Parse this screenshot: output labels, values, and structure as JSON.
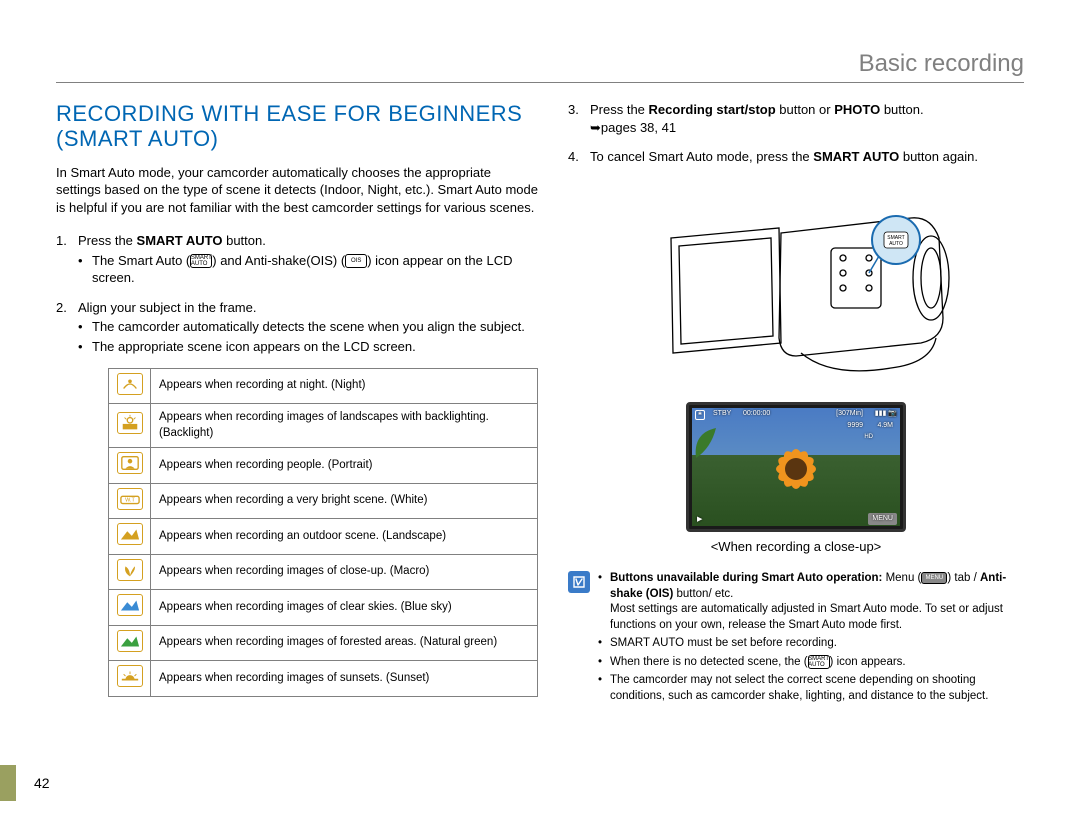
{
  "chapter": "Basic recording",
  "page_number": "42",
  "section_title_line1": "RECORDING WITH EASE FOR BEGINNERS",
  "section_title_line2": "(SMART AUTO)",
  "intro": "In Smart Auto mode, your camcorder automatically chooses the appropriate settings based on the type of scene it detects (Indoor, Night, etc.). Smart Auto mode is helpful if you are not familiar with the best camcorder settings for various scenes.",
  "step1_pre": "Press the ",
  "step1_bold": "SMART AUTO",
  "step1_post": " button.",
  "step1_sub_pre": "The Smart Auto (",
  "step1_sub_mid": ") and Anti-shake(OIS) (",
  "step1_sub_post": ") icon appear on the LCD screen.",
  "icon_smart": "SMART AUTO",
  "icon_ois": "OIS",
  "step2": "Align your subject in the frame.",
  "step2_sub1": "The camcorder automatically detects the scene when you align the subject.",
  "step2_sub2": "The appropriate scene icon appears on the LCD screen.",
  "scene_rows": [
    "Appears when recording at night. (Night)",
    "Appears when recording images of landscapes with backlighting. (Backlight)",
    "Appears when recording people. (Portrait)",
    "Appears when recording a very bright scene. (White)",
    "Appears when recording an outdoor scene. (Landscape)",
    "Appears when recording images of close-up. (Macro)",
    "Appears when recording images of clear skies. (Blue sky)",
    "Appears when recording images of forested areas. (Natural green)",
    "Appears when recording images of sunsets. (Sunset)"
  ],
  "scene_icon_colors": [
    "#d4a020",
    "#d4a020",
    "#d4a020",
    "#d4a020",
    "#d4a020",
    "#d4a020",
    "#d4a020",
    "#d4a020",
    "#d4a020"
  ],
  "step3_pre": "Press the ",
  "step3_b1": "Recording start/stop",
  "step3_mid": " button or ",
  "step3_b2": "PHOTO",
  "step3_post": " button.",
  "step3_pages": "pages 38, 41",
  "step4_pre": "To cancel Smart Auto mode, press the ",
  "step4_bold": "SMART AUTO",
  "step4_post": " button again.",
  "caption": "<When recording a close-up>",
  "note1_b1": "Buttons unavailable during Smart Auto operation:",
  "note1_t1": " Menu (",
  "note1_t2": ") tab / ",
  "note1_b2": "Anti-shake (OIS)",
  "note1_t3": " button/ etc.",
  "note1_line2": "Most settings are automatically adjusted in Smart Auto mode. To set or adjust functions on your own, release the Smart Auto mode first.",
  "note2": "SMART AUTO must be set before recording.",
  "note3_pre": "When there is no detected scene, the (",
  "note3_post": ") icon appears.",
  "note4": "The camcorder may not select the correct scene depending on shooting conditions, such as camcorder shake, lighting, and distance to the subject.",
  "osd": {
    "stby": "STBY",
    "time": "00:00:00",
    "remain": "[307Min]",
    "count": "9999",
    "res": "4.9M",
    "menu": "MENU"
  },
  "menu_pill": "MENU",
  "colors": {
    "accent": "#0066b3",
    "chapter": "#808080",
    "icon_border": "#d4a020",
    "note_bg": "#3a7bc8",
    "sidebar": "#9aa060"
  }
}
